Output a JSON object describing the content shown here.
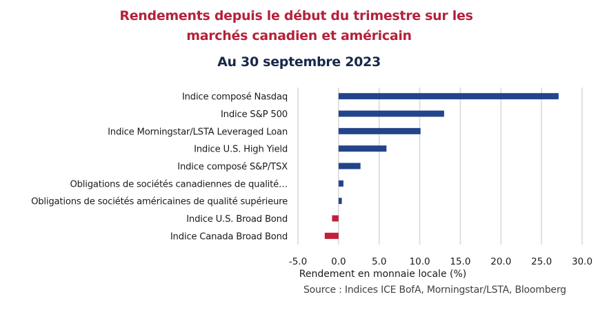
{
  "chart_data": {
    "type": "bar",
    "orientation": "horizontal",
    "title": "Rendements depuis le début du trimestre sur les marchés canadien et américain",
    "title_lines": [
      "Rendements depuis le début du trimestre sur les",
      "marchés canadien et américain"
    ],
    "subtitle": "Au 30 septembre 2023",
    "xlabel": "Rendement en monnaie locale (%)",
    "ylabel": "",
    "xlim": [
      -5.0,
      30.0
    ],
    "x_ticks": [
      "-5.0",
      "0.0",
      "5.0",
      "10.0",
      "15.0",
      "20.0",
      "25.0",
      "30.0"
    ],
    "grid": true,
    "legend": "none",
    "categories": [
      "Indice composé Nasdaq",
      "Indice S&P 500",
      "Indice Morningstar/LSTA Leveraged Loan",
      "Indice U.S. High Yield",
      "Indice composé S&P/TSX",
      "Obligations de sociétés canadiennes de qualité…",
      "Obligations de sociétés américaines de qualité supérieure",
      "Indice U.S. Broad Bond",
      "Indice Canada Broad Bond"
    ],
    "values": [
      27.1,
      13.0,
      10.1,
      5.9,
      2.7,
      0.6,
      0.4,
      -0.8,
      -1.7
    ],
    "colors": {
      "positive": "#22448a",
      "negative": "#c0203a",
      "grid": "#d9d9d9"
    },
    "source": "Source : Indices ICE BofA, Morningstar/LSTA, Bloomberg"
  }
}
